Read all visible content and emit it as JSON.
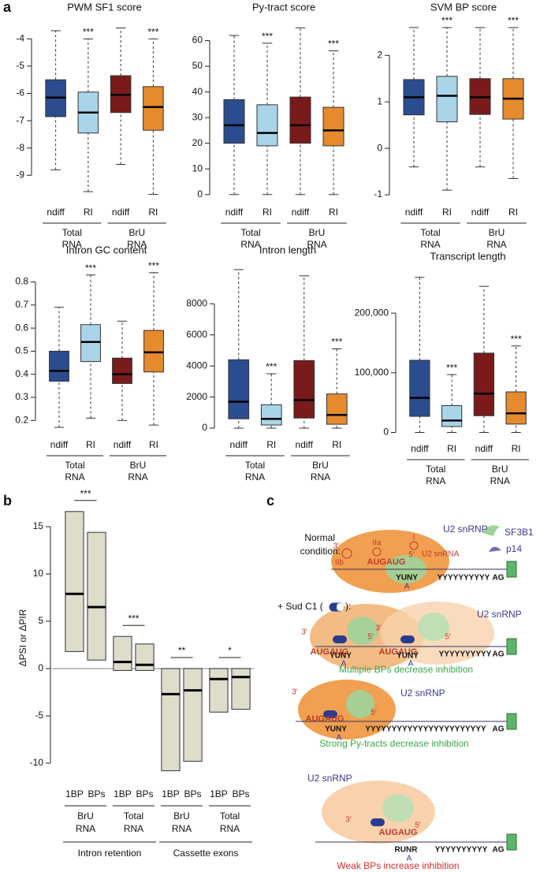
{
  "panel_labels": [
    "a",
    "b",
    "c"
  ],
  "chart_data": [
    {
      "type": "box",
      "title": "PWM SF1 score",
      "categories": [
        "ndiff",
        "RI",
        "ndiff",
        "RI"
      ],
      "groups": [
        [
          "Total",
          "RNA"
        ],
        [
          "BrU",
          "RNA"
        ]
      ],
      "colors": [
        "#2b4d8f",
        "#a9d4ea",
        "#7a1a1a",
        "#e68a2e"
      ],
      "boxes": [
        {
          "low": -8.8,
          "q1": -6.85,
          "median": -6.15,
          "q3": -5.5,
          "high": -3.7
        },
        {
          "low": -9.6,
          "q1": -7.45,
          "median": -6.7,
          "q3": -5.95,
          "high": -4.0,
          "stars": "***"
        },
        {
          "low": -8.6,
          "q1": -6.7,
          "median": -6.05,
          "q3": -5.35,
          "high": -3.6
        },
        {
          "low": -9.7,
          "q1": -7.35,
          "median": -6.5,
          "q3": -5.75,
          "high": -4.0,
          "stars": "***"
        }
      ],
      "ylim": [
        -9.8,
        -3.5
      ],
      "yticks": [
        -9,
        -8,
        -7,
        -6,
        -5,
        -4
      ]
    },
    {
      "type": "box",
      "title": "Py-tract score",
      "categories": [
        "ndiff",
        "RI",
        "ndiff",
        "RI"
      ],
      "groups": [
        [
          "Total",
          "RNA"
        ],
        [
          "BrU",
          "RNA"
        ]
      ],
      "colors": [
        "#2b4d8f",
        "#a9d4ea",
        "#7a1a1a",
        "#e68a2e"
      ],
      "boxes": [
        {
          "low": 0,
          "q1": 20,
          "median": 27,
          "q3": 37,
          "high": 62
        },
        {
          "low": 0,
          "q1": 19,
          "median": 24,
          "q3": 35,
          "high": 59,
          "stars": "***"
        },
        {
          "low": 0,
          "q1": 20,
          "median": 27,
          "q3": 38,
          "high": 65
        },
        {
          "low": 0,
          "q1": 19,
          "median": 25,
          "q3": 34,
          "high": 56,
          "stars": "***"
        }
      ],
      "ylim": [
        -1,
        66
      ],
      "yticks": [
        0,
        10,
        20,
        30,
        40,
        50,
        60
      ]
    },
    {
      "type": "box",
      "title": "SVM BP score",
      "categories": [
        "ndiff",
        "RI",
        "ndiff",
        "RI"
      ],
      "groups": [
        [
          "Total",
          "RNA"
        ],
        [
          "BrU",
          "RNA"
        ]
      ],
      "colors": [
        "#2b4d8f",
        "#a9d4ea",
        "#7a1a1a",
        "#e68a2e"
      ],
      "boxes": [
        {
          "low": -0.4,
          "q1": 0.72,
          "median": 1.1,
          "q3": 1.48,
          "high": 2.6
        },
        {
          "low": -0.9,
          "q1": 0.57,
          "median": 1.13,
          "q3": 1.55,
          "high": 2.6,
          "stars": "***"
        },
        {
          "low": -0.4,
          "q1": 0.73,
          "median": 1.1,
          "q3": 1.5,
          "high": 2.6
        },
        {
          "low": -0.65,
          "q1": 0.63,
          "median": 1.07,
          "q3": 1.5,
          "high": 2.6,
          "stars": "***"
        }
      ],
      "ylim": [
        -1.05,
        2.65
      ],
      "yticks": [
        -1,
        0,
        1,
        2
      ]
    },
    {
      "type": "box",
      "title": "Intron GC content",
      "categories": [
        "ndiff",
        "RI",
        "ndiff",
        "RI"
      ],
      "groups": [
        [
          "Total",
          "RNA"
        ],
        [
          "BrU",
          "RNA"
        ]
      ],
      "colors": [
        "#2b4d8f",
        "#a9d4ea",
        "#7a1a1a",
        "#e68a2e"
      ],
      "boxes": [
        {
          "low": 0.17,
          "q1": 0.37,
          "median": 0.415,
          "q3": 0.5,
          "high": 0.69
        },
        {
          "low": 0.21,
          "q1": 0.455,
          "median": 0.54,
          "q3": 0.615,
          "high": 0.83,
          "stars": "***"
        },
        {
          "low": 0.2,
          "q1": 0.36,
          "median": 0.4,
          "q3": 0.47,
          "high": 0.63
        },
        {
          "low": 0.18,
          "q1": 0.41,
          "median": 0.495,
          "q3": 0.59,
          "high": 0.84,
          "stars": "***"
        }
      ],
      "ylim": [
        0.16,
        0.86
      ],
      "yticks": [
        0.2,
        0.3,
        0.4,
        0.5,
        0.6,
        0.7,
        0.8
      ]
    },
    {
      "type": "box",
      "title": "Intron length",
      "categories": [
        "ndiff",
        "RI",
        "ndiff",
        "RI"
      ],
      "groups": [
        [
          "Total",
          "RNA"
        ],
        [
          "BrU",
          "RNA"
        ]
      ],
      "colors": [
        "#2b4d8f",
        "#a9d4ea",
        "#7a1a1a",
        "#e68a2e"
      ],
      "boxes": [
        {
          "low": 0,
          "q1": 600,
          "median": 1700,
          "q3": 4400,
          "high": 10200
        },
        {
          "low": 0,
          "q1": 200,
          "median": 600,
          "q3": 1500,
          "high": 3500,
          "stars": "***"
        },
        {
          "low": 0,
          "q1": 650,
          "median": 1800,
          "q3": 4350,
          "high": 9800
        },
        {
          "low": 0,
          "q1": 250,
          "median": 850,
          "q3": 2200,
          "high": 5100,
          "stars": "***"
        }
      ],
      "ylim": [
        -100,
        10300
      ],
      "yticks": [
        0,
        2000,
        4000,
        6000,
        8000
      ]
    },
    {
      "type": "box",
      "title": "Transcript length",
      "categories": [
        "ndiff",
        "RI",
        "ndiff",
        "RI"
      ],
      "groups": [
        [
          "Total",
          "RNA"
        ],
        [
          "BrU",
          "RNA"
        ]
      ],
      "colors": [
        "#2b4d8f",
        "#a9d4ea",
        "#7a1a1a",
        "#e68a2e"
      ],
      "boxes": [
        {
          "low": 0,
          "q1": 27000,
          "median": 58000,
          "q3": 121000,
          "high": 260000
        },
        {
          "low": 0,
          "q1": 10000,
          "median": 20000,
          "q3": 45000,
          "high": 97000,
          "stars": "***"
        },
        {
          "low": 0,
          "q1": 28000,
          "median": 65000,
          "q3": 133000,
          "high": 245000
        },
        {
          "low": 0,
          "q1": 14000,
          "median": 32000,
          "q3": 68000,
          "high": 145000,
          "stars": "***"
        }
      ],
      "ylim": [
        -2000,
        265000
      ],
      "yticks": [
        0,
        {
          "value": 100000,
          "label": "100,000"
        },
        {
          "value": 200000,
          "label": "200,000"
        }
      ]
    },
    {
      "type": "range_bar",
      "ylabel": "ΔPSI or ΔPIR",
      "categories": [
        "1BP",
        "BPs",
        "1BP",
        "BPs",
        "1BP",
        "BPs",
        "1BP",
        "BPs"
      ],
      "groups": [
        [
          "BrU",
          "RNA"
        ],
        [
          "Total",
          "RNA"
        ],
        [
          "BrU",
          "RNA"
        ],
        [
          "Total",
          "RNA"
        ]
      ],
      "significance": [
        "***",
        "***",
        "**",
        "*"
      ],
      "supergroups": [
        "Intron retention",
        "Cassette exons"
      ],
      "color": "#dedccb",
      "bars": [
        {
          "low": 1.8,
          "median": 7.9,
          "high": 16.6
        },
        {
          "low": 0.9,
          "median": 6.5,
          "high": 14.4
        },
        {
          "low": -0.2,
          "median": 0.7,
          "high": 3.4
        },
        {
          "low": -0.2,
          "median": 0.4,
          "high": 2.6
        },
        {
          "low": -10.8,
          "median": -2.7,
          "high": 0
        },
        {
          "low": -9.8,
          "median": -2.3,
          "high": 0
        },
        {
          "low": -4.6,
          "median": -1.1,
          "high": 0
        },
        {
          "low": -4.3,
          "median": -0.9,
          "high": 0
        }
      ],
      "ylim": [
        -11,
        17.5
      ],
      "yticks": [
        -10,
        -5,
        0,
        5,
        10,
        15
      ]
    }
  ],
  "diagram": {
    "legend": [
      "SF3B1",
      "p14"
    ],
    "scenes": [
      {
        "texts": [
          "Normal",
          "condition:",
          "U2 snRNP",
          "U2 snRNA",
          "IIa",
          "I",
          "IIb",
          "3′",
          "5′",
          "AUGAUG",
          "YUNY",
          "A",
          "YYYYYYYYYY",
          "AG"
        ]
      },
      {
        "texts": [
          "+ Sud C1 (",
          "):",
          "U2 snRNP",
          "3′",
          "5′",
          "3′",
          "5′",
          "AUGAUG",
          "YUNY",
          "A",
          "AUGAUG",
          "YUNY",
          "A",
          "YYYYYYYYYY",
          "AG",
          "Multiple BPs decrease inhibition"
        ]
      },
      {
        "texts": [
          "U2 snRNP",
          "3′",
          "5′",
          "AUGAUG",
          "YUNY",
          "A",
          "YYYYYYYYYYYYYYYYYYYYYYY",
          "AG",
          "Strong Py-tracts decrease inhibition"
        ]
      },
      {
        "texts": [
          "U2 snRNP",
          "3′",
          "5′",
          "AUGAUG",
          "RUNR",
          "A",
          "YYYYYYYYYY",
          "AG",
          "Weak BPs increase inhibition"
        ]
      }
    ]
  }
}
